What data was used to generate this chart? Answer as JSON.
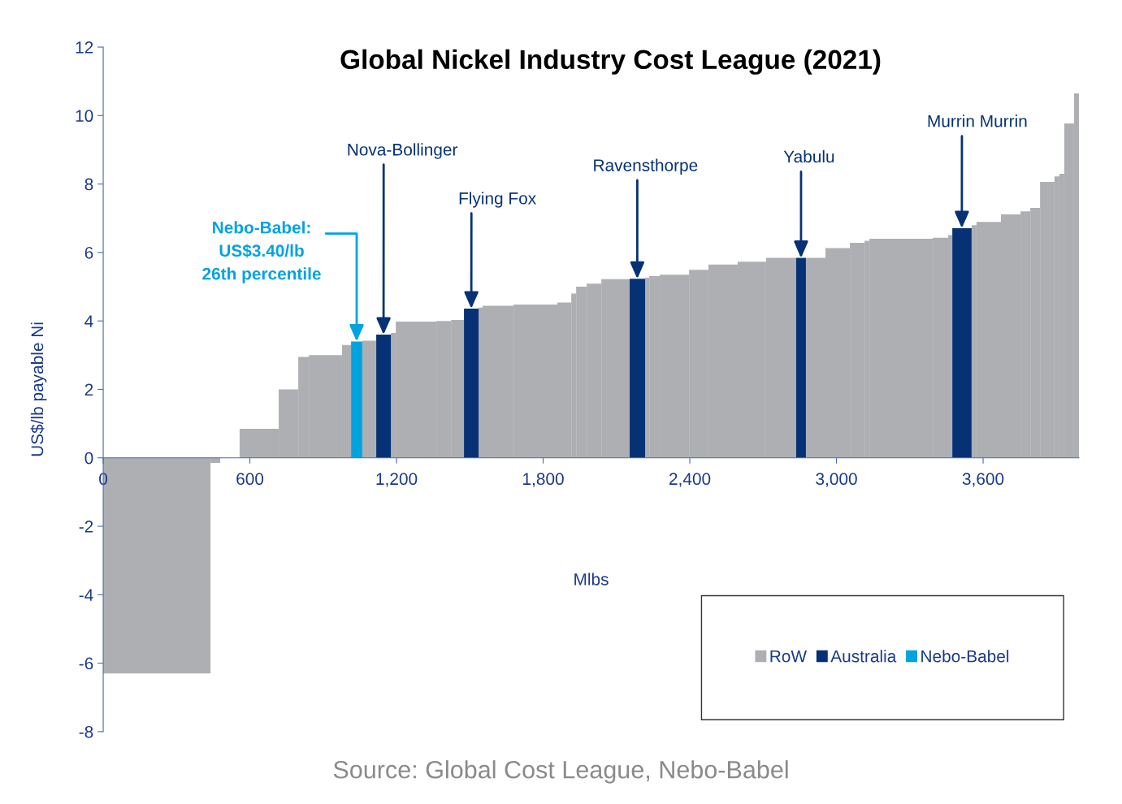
{
  "chart_data": {
    "type": "histogram",
    "title": "Global Nickel Industry Cost League (2021)",
    "xlabel": "Mlbs",
    "ylabel": "US$/lb payable Ni",
    "bins": [
      0,
      439,
      479,
      558,
      718,
      798,
      841,
      977,
      1014,
      1060,
      1117,
      1177,
      1197,
      1363,
      1423,
      1476,
      1536,
      1552,
      1679,
      1858,
      1915,
      1935,
      1978,
      2038,
      2154,
      2217,
      2234,
      2277,
      2397,
      2476,
      2596,
      2712,
      2835,
      2875,
      2955,
      3055,
      3115,
      3135,
      3394,
      3457,
      3474,
      3553,
      3573,
      3673,
      3753,
      3793,
      3833,
      3892,
      3912,
      3932,
      3972,
      3992
    ],
    "series": [
      {
        "name": "RoW",
        "color": "#aeafb3",
        "values": [
          -6.3,
          -0.15,
          null,
          0.85,
          2.0,
          2.95,
          3.0,
          3.3,
          null,
          3.42,
          null,
          3.65,
          3.98,
          4.0,
          4.03,
          null,
          4.39,
          4.44,
          4.48,
          4.54,
          4.8,
          5.0,
          5.09,
          5.22,
          null,
          5.26,
          5.31,
          5.35,
          5.49,
          5.65,
          5.73,
          5.84,
          null,
          5.84,
          6.13,
          6.28,
          6.34,
          6.4,
          6.43,
          6.51,
          null,
          6.8,
          6.89,
          7.11,
          7.2,
          7.3,
          8.06,
          8.22,
          8.3,
          9.77,
          10.65
        ]
      },
      {
        "name": "Australia",
        "color": "#063275",
        "values": [
          null,
          null,
          null,
          null,
          null,
          null,
          null,
          null,
          null,
          null,
          3.6,
          null,
          null,
          null,
          null,
          4.36,
          null,
          null,
          null,
          null,
          null,
          null,
          null,
          null,
          5.23,
          null,
          null,
          null,
          null,
          null,
          null,
          null,
          5.84,
          null,
          null,
          null,
          null,
          null,
          null,
          null,
          6.71,
          null,
          null,
          null,
          null,
          null,
          null,
          null,
          null,
          null,
          null
        ]
      },
      {
        "name": "Nebo-Babel",
        "color": "#00a3e0",
        "values": [
          null,
          null,
          null,
          null,
          null,
          null,
          null,
          null,
          3.4,
          null,
          null,
          null,
          null,
          null,
          null,
          null,
          null,
          null,
          null,
          null,
          null,
          null,
          null,
          null,
          null,
          null,
          null,
          null,
          null,
          null,
          null,
          null,
          null,
          null,
          null,
          null,
          null,
          null,
          null,
          null,
          null,
          null,
          null,
          null,
          null,
          null,
          null,
          null,
          null,
          null,
          null
        ]
      }
    ],
    "xlim": [
      0,
      3992
    ],
    "ylim": [
      -8,
      12
    ],
    "xticks": [
      0,
      600,
      {
        "value": 1200,
        "label": "1,200"
      },
      {
        "value": 1800,
        "label": "1,800"
      },
      {
        "value": 2400,
        "label": "2,400"
      },
      {
        "value": 3000,
        "label": "3,000"
      },
      {
        "value": 3600,
        "label": "3,600"
      }
    ],
    "yticks": [
      -8,
      -6,
      -4,
      -2,
      0,
      2,
      4,
      6,
      8,
      10,
      12
    ],
    "annotations": [
      {
        "text": "Nebo-Babel:\nUS$3.40/lb\n26th percentile",
        "x": 1037,
        "y": 3.4
      },
      {
        "text": "Nova-Bollinger",
        "x": 1147,
        "y": 3.6
      },
      {
        "text": "Flying Fox",
        "x": 1506,
        "y": 4.36
      },
      {
        "text": "Ravensthorpe",
        "x": 2185,
        "y": 5.23
      },
      {
        "text": "Yabulu",
        "x": 2855,
        "y": 5.84
      },
      {
        "text": "Murrin Murrin",
        "x": 3513,
        "y": 6.71
      },
      "Source: Global Cost League, Nebo-Babel"
    ],
    "legend": "bottom right",
    "grid": false
  }
}
